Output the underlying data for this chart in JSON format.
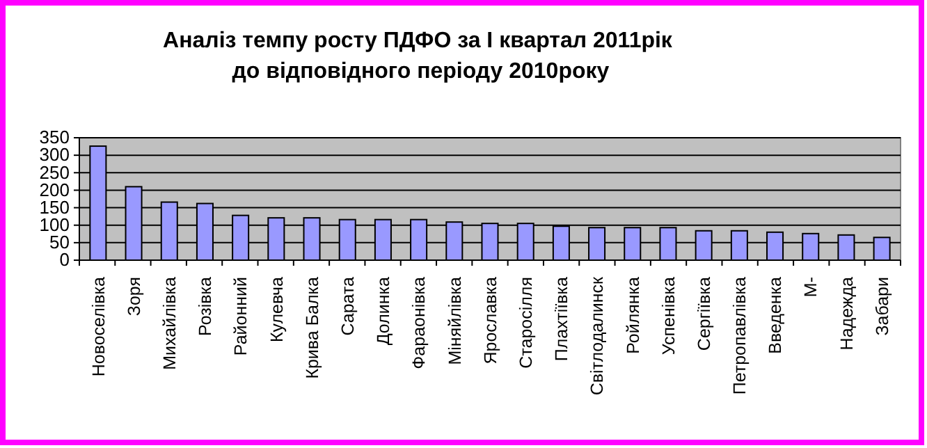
{
  "chart_data": {
    "type": "bar",
    "title": "Аналіз темпу росту ПДФО за І квартал 2011рік  до відповідного періоду  2010року",
    "categories": [
      "Новоселівка",
      "Зоря",
      "Михайлівка",
      "Розівка",
      "Районний",
      "Кулевча",
      "Крива Балка",
      "Сарата",
      "Долинка",
      "Фараонівка",
      "Міняйлівка",
      "Ярославка",
      "Старосілля",
      "Плахтіївка",
      "Світлодалинск",
      "Ройлянка",
      "Успенівка",
      "Сергіївка",
      "Петропавлівка",
      "Введенка",
      "М-",
      "Надежда",
      "Забари"
    ],
    "values": [
      326,
      210,
      166,
      162,
      128,
      121,
      121,
      116,
      116,
      116,
      109,
      105,
      105,
      97,
      93,
      93,
      93,
      84,
      84,
      80,
      76,
      72,
      65
    ],
    "color": "#9999ff",
    "ylim": [
      0,
      350
    ],
    "yticks": [
      0,
      50,
      100,
      150,
      200,
      250,
      300,
      350
    ],
    "grid": "y"
  }
}
